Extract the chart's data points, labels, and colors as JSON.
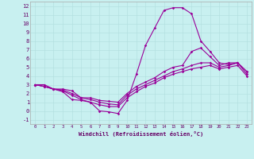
{
  "xlabel": "Windchill (Refroidissement éolien,°C)",
  "background_color": "#c8f0f0",
  "line_color": "#990099",
  "xlim": [
    -0.5,
    23.5
  ],
  "ylim": [
    -1.5,
    12.5
  ],
  "x_ticks": [
    0,
    1,
    2,
    3,
    4,
    5,
    6,
    7,
    8,
    9,
    10,
    11,
    12,
    13,
    14,
    15,
    16,
    17,
    18,
    19,
    20,
    21,
    22,
    23
  ],
  "y_ticks": [
    -1,
    0,
    1,
    2,
    3,
    4,
    5,
    6,
    7,
    8,
    9,
    10,
    11,
    12
  ],
  "series": [
    [
      3.0,
      3.0,
      2.5,
      2.2,
      1.3,
      1.2,
      1.0,
      0.0,
      -0.1,
      -0.3,
      1.2,
      4.2,
      7.5,
      9.5,
      11.5,
      11.8,
      11.8,
      11.1,
      8.0,
      6.8,
      5.5,
      5.3,
      5.5,
      4.5
    ],
    [
      3.0,
      2.8,
      2.5,
      2.5,
      2.3,
      1.5,
      1.5,
      1.2,
      1.1,
      1.0,
      2.0,
      2.8,
      3.3,
      3.8,
      4.5,
      5.0,
      5.2,
      6.8,
      7.2,
      6.2,
      5.2,
      5.5,
      5.5,
      4.5
    ],
    [
      3.0,
      2.8,
      2.5,
      2.4,
      2.0,
      1.5,
      1.3,
      1.0,
      0.8,
      0.7,
      1.8,
      2.5,
      3.0,
      3.5,
      4.0,
      4.5,
      4.8,
      5.2,
      5.5,
      5.5,
      5.0,
      5.2,
      5.5,
      4.2
    ],
    [
      3.0,
      2.8,
      2.5,
      2.3,
      1.8,
      1.3,
      1.0,
      0.7,
      0.5,
      0.5,
      1.5,
      2.2,
      2.8,
      3.2,
      3.8,
      4.2,
      4.5,
      4.8,
      5.0,
      5.2,
      4.8,
      5.0,
      5.2,
      4.0
    ]
  ]
}
